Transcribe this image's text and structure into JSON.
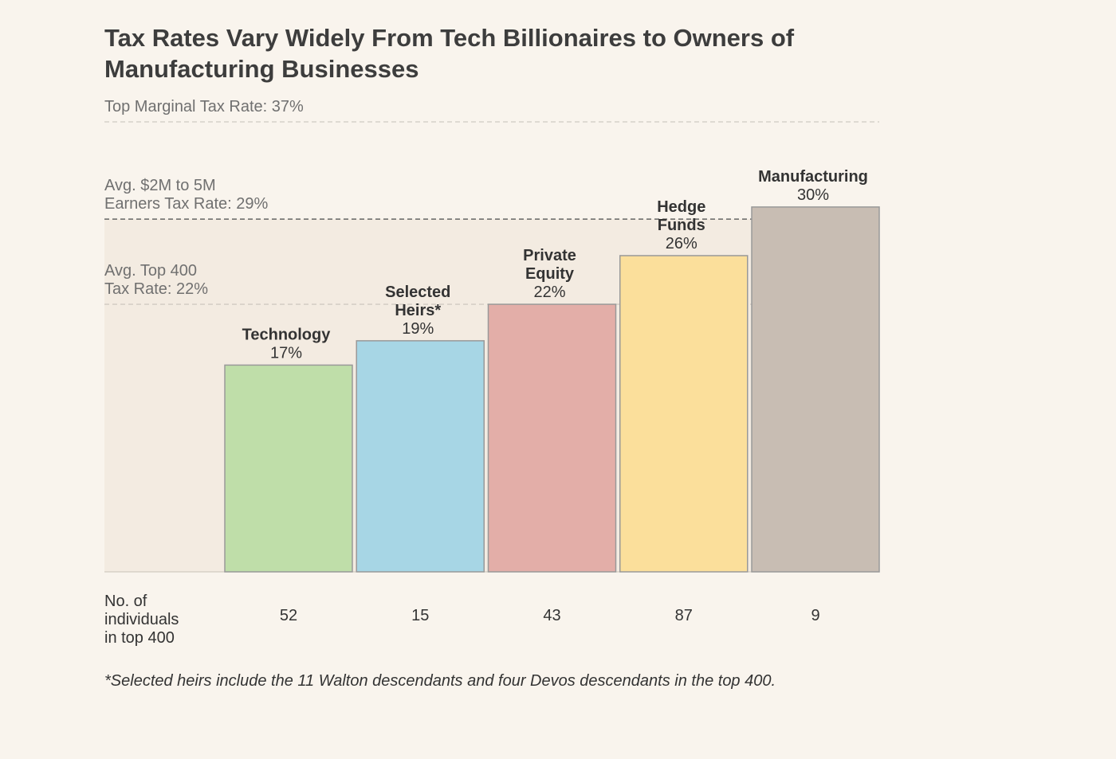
{
  "chart_data": {
    "type": "bar",
    "title": "Tax Rates Vary Widely From Tech Billionaires to Owners of Manufacturing Businesses",
    "categories": [
      [
        "Technology"
      ],
      [
        "Selected",
        "Heirs*"
      ],
      [
        "Private",
        "Equity"
      ],
      [
        "Hedge",
        "Funds"
      ],
      [
        "Manufacturing"
      ]
    ],
    "series": [
      {
        "values": [
          17,
          19,
          22,
          26,
          30
        ],
        "value_labels": [
          "17%",
          "19%",
          "22%",
          "26%",
          "30%"
        ]
      }
    ],
    "bar_colors": [
      "#bfdea9",
      "#a7d6e5",
      "#e3aea8",
      "#fbdf9b",
      "#c8bdb3"
    ],
    "bar_stroke": "#999999",
    "ylim": [
      0,
      37
    ],
    "reference_lines": [
      {
        "value": 37,
        "label_lines": [
          "Top Marginal Tax Rate: 37%"
        ]
      },
      {
        "value": 29,
        "label_lines": [
          "Avg. $2M to 5M",
          "Earners Tax Rate: 29%"
        ]
      },
      {
        "value": 22,
        "label_lines": [
          "Avg. Top 400",
          "Tax Rate: 22%"
        ]
      }
    ],
    "shaded_band": {
      "from": 0,
      "to": 29,
      "color": "#f3ebe1"
    },
    "counts": {
      "label_lines": [
        "No. of",
        "individuals",
        "in top 400"
      ],
      "values": [
        "52",
        "15",
        "43",
        "87",
        "9"
      ]
    },
    "footnote": "*Selected heirs include the 11 Walton descendants and four Devos descendants in the top 400."
  }
}
